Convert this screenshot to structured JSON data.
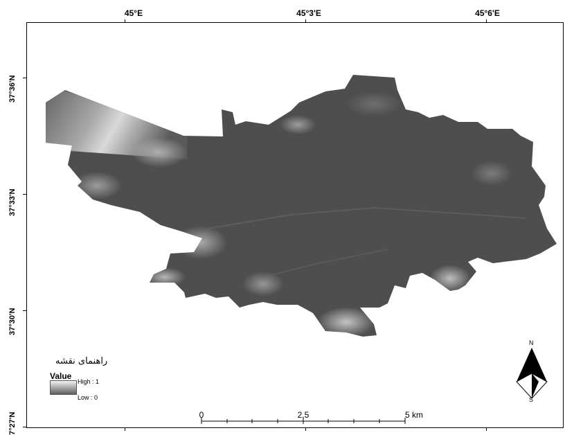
{
  "map": {
    "top_labels": [
      "45°E",
      "45°3'E",
      "45°6'E"
    ],
    "left_labels": [
      "37°36'N",
      "37°33'N",
      "37°30'N",
      "7°27'N"
    ]
  },
  "legend": {
    "title": "راهنمای نقشه",
    "value_label": "Value",
    "high_label": "High : 1",
    "low_label": "Low : 0",
    "ramp_colors": [
      "#f4f4f4",
      "#5e5e5e"
    ]
  },
  "scale_bar": {
    "labels": [
      "0",
      "2.5",
      "5 km"
    ]
  },
  "north_arrow": {
    "north": "N",
    "south": "S"
  },
  "colors": {
    "city_fill": "#4e4e4e",
    "highlight": "#d6d6d6"
  }
}
